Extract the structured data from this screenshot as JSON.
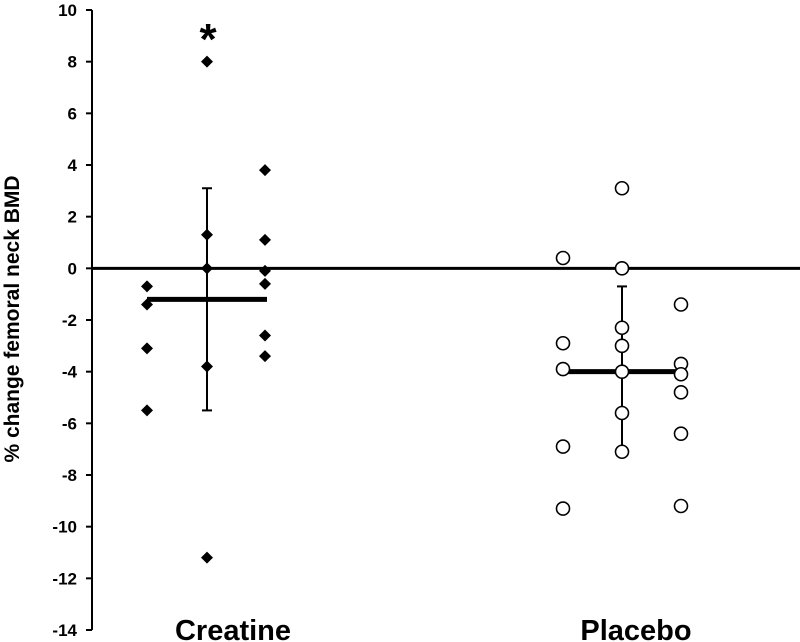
{
  "chart_data": {
    "type": "scatter",
    "title": "",
    "xlabel": "",
    "ylabel": "% change femoral neck BMD",
    "ylim": [
      -14,
      10
    ],
    "y_ticks": [
      10,
      8,
      6,
      4,
      2,
      0,
      -2,
      -4,
      -6,
      -8,
      -10,
      -12,
      -14
    ],
    "categories": [
      "Creatine",
      "Placebo"
    ],
    "grid": false,
    "reference_line": 0,
    "annotations": [
      {
        "text": "*",
        "category": "Creatine"
      }
    ],
    "series": [
      {
        "category": "Creatine",
        "marker": "filled-diamond",
        "mean": -1.2,
        "sd_upper": 3.1,
        "sd_lower": -5.5,
        "columns": [
          [
            -0.7,
            -1.4,
            -3.1,
            -5.5
          ],
          [
            8.0,
            1.3,
            0.0,
            -3.8,
            -11.2
          ],
          [
            3.8,
            1.1,
            -0.1,
            -0.6,
            -2.6,
            -3.4
          ]
        ]
      },
      {
        "category": "Placebo",
        "marker": "open-circle",
        "mean": -4.0,
        "sd_upper": -0.7,
        "sd_lower": -7.1,
        "columns": [
          [
            0.4,
            -2.9,
            -3.9,
            -6.9,
            -9.3
          ],
          [
            3.1,
            0.0,
            -2.3,
            -3.0,
            -4.0,
            -5.6,
            -7.1
          ],
          [
            -1.4,
            -3.7,
            -4.1,
            -4.8,
            -6.4,
            -9.2
          ]
        ]
      }
    ]
  }
}
